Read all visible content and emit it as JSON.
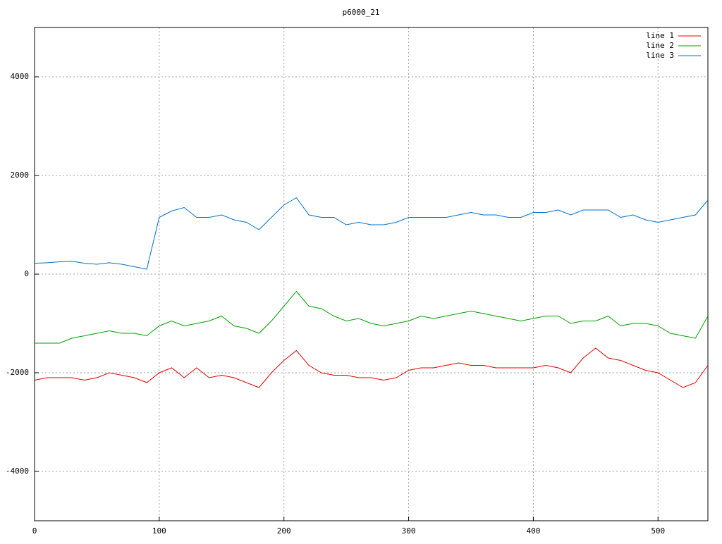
{
  "chart_data": {
    "type": "line",
    "title": "p6000_21",
    "x": [
      0,
      10,
      20,
      30,
      40,
      50,
      60,
      70,
      80,
      90,
      100,
      110,
      120,
      130,
      140,
      150,
      160,
      170,
      180,
      190,
      200,
      210,
      220,
      230,
      240,
      250,
      260,
      270,
      280,
      290,
      300,
      310,
      320,
      330,
      340,
      350,
      360,
      370,
      380,
      390,
      400,
      410,
      420,
      430,
      440,
      450,
      460,
      470,
      480,
      490,
      500,
      510,
      520,
      530,
      540
    ],
    "series": [
      {
        "name": "line 1",
        "color": "#e00000",
        "values": [
          -2150,
          -2100,
          -2100,
          -2100,
          -2150,
          -2100,
          -2000,
          -2050,
          -2100,
          -2200,
          -2000,
          -1900,
          -2100,
          -1900,
          -2100,
          -2050,
          -2100,
          -2200,
          -2300,
          -2000,
          -1750,
          -1550,
          -1850,
          -2000,
          -2050,
          -2050,
          -2100,
          -2100,
          -2150,
          -2100,
          -1950,
          -1900,
          -1900,
          -1850,
          -1800,
          -1850,
          -1850,
          -1900,
          -1900,
          -1900,
          -1900,
          -1850,
          -1900,
          -2000,
          -1700,
          -1500,
          -1700,
          -1750,
          -1850,
          -1950,
          -2000,
          -2150,
          -2300,
          -2200,
          -1850
        ]
      },
      {
        "name": "line 2",
        "color": "#00a000",
        "values": [
          -1400,
          -1400,
          -1400,
          -1300,
          -1250,
          -1200,
          -1150,
          -1200,
          -1200,
          -1250,
          -1050,
          -950,
          -1050,
          -1000,
          -950,
          -850,
          -1050,
          -1100,
          -1200,
          -950,
          -650,
          -350,
          -650,
          -700,
          -850,
          -950,
          -900,
          -1000,
          -1050,
          -1000,
          -950,
          -850,
          -900,
          -850,
          -800,
          -750,
          -800,
          -850,
          -900,
          -950,
          -900,
          -850,
          -850,
          -1000,
          -950,
          -950,
          -850,
          -1050,
          -1000,
          -1000,
          -1050,
          -1200,
          -1250,
          -1300,
          -850
        ]
      },
      {
        "name": "line 3",
        "color": "#0070d0",
        "values": [
          220,
          230,
          250,
          260,
          220,
          200,
          230,
          200,
          150,
          100,
          1150,
          1280,
          1350,
          1150,
          1150,
          1200,
          1100,
          1050,
          900,
          1150,
          1400,
          1550,
          1200,
          1150,
          1150,
          1000,
          1050,
          1000,
          1000,
          1050,
          1150,
          1150,
          1150,
          1150,
          1200,
          1250,
          1200,
          1200,
          1150,
          1150,
          1250,
          1250,
          1300,
          1200,
          1300,
          1300,
          1300,
          1150,
          1200,
          1100,
          1050,
          1100,
          1150,
          1200,
          1500
        ]
      }
    ],
    "xlim": [
      0,
      540
    ],
    "ylim": [
      -5000,
      5000
    ],
    "xticks": [
      0,
      100,
      200,
      300,
      400,
      500
    ],
    "yticks": [
      -4000,
      -2000,
      0,
      2000,
      4000
    ],
    "grid": true,
    "legend": "top-right"
  }
}
